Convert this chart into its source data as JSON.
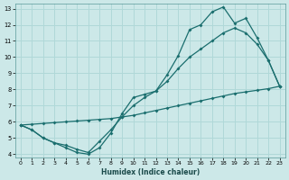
{
  "xlabel": "Humidex (Indice chaleur)",
  "bg_color": "#cce8e8",
  "grid_color": "#b0d8d8",
  "line_color": "#1a6e6e",
  "xlim": [
    -0.5,
    23.5
  ],
  "ylim": [
    3.8,
    13.3
  ],
  "xticks": [
    0,
    1,
    2,
    3,
    4,
    5,
    6,
    7,
    8,
    9,
    10,
    11,
    12,
    13,
    14,
    15,
    16,
    17,
    18,
    19,
    20,
    21,
    22,
    23
  ],
  "yticks": [
    4,
    5,
    6,
    7,
    8,
    9,
    10,
    11,
    12,
    13
  ],
  "curve1_x": [
    0,
    1,
    2,
    3,
    4,
    5,
    6,
    7,
    8,
    9,
    10,
    11,
    12,
    13,
    14,
    15,
    16,
    17,
    18,
    19,
    20,
    21,
    22,
    23
  ],
  "curve1_y": [
    5.8,
    5.5,
    5.0,
    4.7,
    4.4,
    4.1,
    4.0,
    4.4,
    5.3,
    6.5,
    7.5,
    7.7,
    7.9,
    8.9,
    10.1,
    11.7,
    12.0,
    12.8,
    13.1,
    12.1,
    12.4,
    11.2,
    9.8,
    8.2
  ],
  "curve2_x": [
    0,
    1,
    2,
    3,
    4,
    5,
    6,
    7,
    8,
    9,
    10,
    11,
    12,
    13,
    14,
    15,
    16,
    17,
    18,
    19,
    20,
    21,
    22,
    23
  ],
  "curve2_y": [
    5.8,
    5.85,
    5.9,
    5.95,
    6.0,
    6.05,
    6.1,
    6.15,
    6.2,
    6.3,
    6.4,
    6.55,
    6.7,
    6.85,
    7.0,
    7.15,
    7.3,
    7.45,
    7.6,
    7.75,
    7.85,
    7.95,
    8.05,
    8.2
  ],
  "curve3_x": [
    0,
    1,
    2,
    3,
    4,
    5,
    6,
    7,
    8,
    9,
    10,
    11,
    12,
    13,
    14,
    15,
    16,
    17,
    18,
    19,
    20,
    21,
    22,
    23
  ],
  "curve3_y": [
    5.8,
    5.5,
    5.0,
    4.7,
    4.55,
    4.3,
    4.1,
    4.8,
    5.5,
    6.3,
    7.0,
    7.5,
    7.9,
    8.5,
    9.3,
    10.0,
    10.5,
    11.0,
    11.5,
    11.8,
    11.5,
    10.8,
    9.8,
    8.2
  ],
  "marker": "D",
  "markersize": 2.0,
  "linewidth": 0.9
}
